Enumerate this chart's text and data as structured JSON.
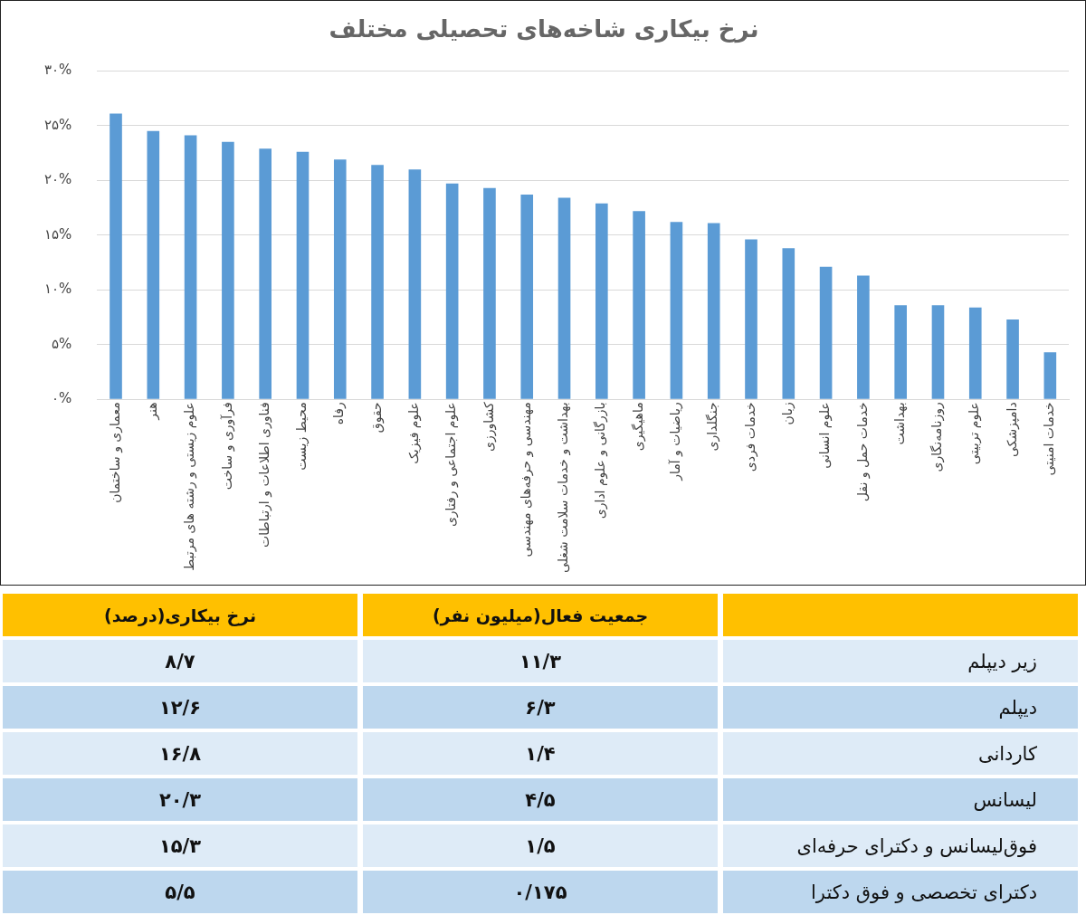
{
  "chart_data": [
    {
      "type": "bar",
      "title": "نرخ بیکاری شاخه‌های تحصیلی مختلف",
      "categories": [
        "معماری و ساختمان",
        "هنر",
        "علوم زیستی و رشته های مرتبط",
        "فرآوری و ساخت",
        "فناوری اطلاعات و ارتباطات",
        "محیط زیست",
        "رفاه",
        "حقوق",
        "علوم فیزیک",
        "علوم اجتماعی و رفتاری",
        "کشاورزی",
        "مهندسی و حرفه‌های مهندسی",
        "بهداشت و خدمات سلامت شغلی",
        "بازرگانی و علوم اداری",
        "ماهیگیری",
        "ریاضیات و آمار",
        "جنگلداری",
        "خدمات فردی",
        "زبان",
        "علوم انسانی",
        "خدمات حمل و نقل",
        "بهداشت",
        "روزنامه‌نگاری",
        "علوم تربیتی",
        "دامپزشکی",
        "خدمات امنیتی"
      ],
      "values": [
        26.1,
        24.5,
        24.1,
        23.5,
        22.9,
        22.6,
        21.9,
        21.4,
        21.0,
        19.7,
        19.3,
        18.7,
        18.4,
        17.9,
        17.2,
        16.2,
        16.1,
        14.6,
        13.8,
        12.1,
        11.3,
        8.6,
        8.6,
        8.4,
        7.3,
        4.3
      ],
      "color": "#5b9bd5",
      "ylim": [
        0,
        30
      ],
      "yticks": [
        {
          "value": 0,
          "label": "۰%"
        },
        {
          "value": 5,
          "label": "۵%"
        },
        {
          "value": 10,
          "label": "۱۰%"
        },
        {
          "value": 15,
          "label": "۱۵%"
        },
        {
          "value": 20,
          "label": "۲۰%"
        },
        {
          "value": 25,
          "label": "۲۵%"
        },
        {
          "value": 30,
          "label": "۳۰%"
        }
      ],
      "grid": "y",
      "legend": false
    },
    {
      "type": "other",
      "categories": [
        "نرخ بیکاری(درصد)",
        "جمعیت فعال(میلیون نفر)"
      ],
      "y2_categories": [
        "زیر دیپلم",
        "دیپلم",
        "کاردانی",
        "لیسانس",
        "فوق‌لیسانس و دکترای حرفه‌ای",
        "دکترای تخصصی و فوق دکترا"
      ],
      "cell_labels": [
        [
          "۸/۷",
          "۱۱/۳"
        ],
        [
          "۱۲/۶",
          "۶/۳"
        ],
        [
          "۱۶/۸",
          "۱/۴"
        ],
        [
          "۲۰/۳",
          "۴/۵"
        ],
        [
          "۱۵/۳",
          "۱/۵"
        ],
        [
          "۵/۵",
          "۰/۱۷۵"
        ]
      ]
    }
  ]
}
